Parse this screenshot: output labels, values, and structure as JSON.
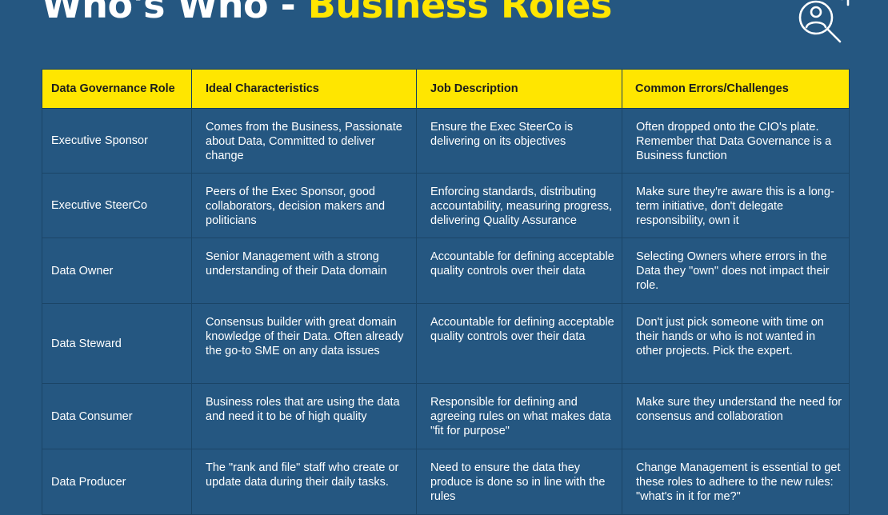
{
  "header": {
    "title_white": "Who's Who -",
    "title_yellow": "Business Roles",
    "icon": "search-person-icon"
  },
  "colors": {
    "background": "#255781",
    "accent": "#ffe600",
    "text": "#ffffff"
  },
  "table": {
    "headers": [
      "Data Governance Role",
      "Ideal Characteristics",
      "Job Description",
      "Common Errors/Challenges"
    ],
    "rows": [
      [
        "Executive Sponsor",
        "Comes from the Business, Passionate about Data, Committed to deliver change",
        "Ensure the Exec SteerCo is delivering on its objectives",
        "Often dropped onto the CIO's plate. Remember that Data Governance is a Business function"
      ],
      [
        "Executive SteerCo",
        "Peers of the Exec Sponsor, good collaborators, decision makers and politicians",
        "Enforcing standards, distributing accountability, measuring progress, delivering Quality Assurance",
        "Make sure they're aware this is a long-term initiative, don't delegate responsibility, own it"
      ],
      [
        "Data Owner",
        "Senior Management with a strong understanding of their Data domain",
        "Accountable for defining acceptable quality controls over their data",
        "Selecting Owners where errors in the Data they \"own\" does not impact their role."
      ],
      [
        "Data Steward",
        "Consensus builder with great domain knowledge of their Data. Often already the go-to SME on any data issues",
        "Accountable for defining acceptable quality controls over their data",
        "Don't just pick someone with time on their hands or who is not wanted in other projects. Pick the expert."
      ],
      [
        "Data Consumer",
        "Business roles that are using the data and need it to be of high quality",
        "Responsible for defining and agreeing rules on what makes data \"fit for purpose\"",
        "Make sure they understand the need for consensus and collaboration"
      ],
      [
        "Data Producer",
        "The \"rank and file\" staff who create or update data during their daily tasks.",
        "Need to ensure the data they produce is done so in line with the rules",
        "Change Management is essential to get these roles to adhere to the new rules: \"what's in it for me?\""
      ]
    ]
  }
}
